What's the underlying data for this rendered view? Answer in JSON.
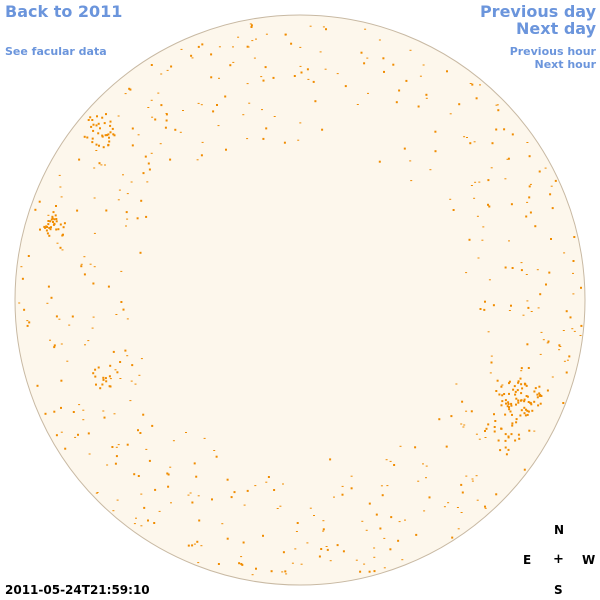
{
  "nav": {
    "back_label": "Back to 2011",
    "facular_label": "See facular data",
    "prev_day_label": "Previous day",
    "next_day_label": "Next day",
    "prev_hour_label": "Previous hour",
    "next_hour_label": "Next hour"
  },
  "observation": {
    "timestamp": "2011-05-24T21:59:10"
  },
  "compass": {
    "north": "N",
    "east": "E",
    "center": "+",
    "west": "W",
    "south": "S"
  },
  "colors": {
    "link": "#6b95dc",
    "disk_fill": "#fdf7ec",
    "disk_stroke": "#c8b9a3",
    "spot": "#f08c00"
  }
}
